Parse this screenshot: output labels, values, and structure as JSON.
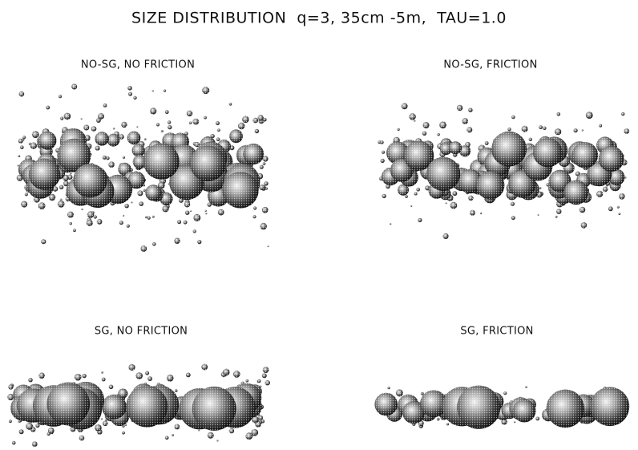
{
  "title": "SIZE DISTRIBUTION  q=3, 35cm -5m,  TAU=1.0",
  "panels": [
    {
      "label": "NO-SG, NO FRICTION"
    },
    {
      "label": "NO-SG, FRICTION"
    },
    {
      "label": "SG, NO FRICTION"
    },
    {
      "label": "SG, FRICTION"
    }
  ]
}
